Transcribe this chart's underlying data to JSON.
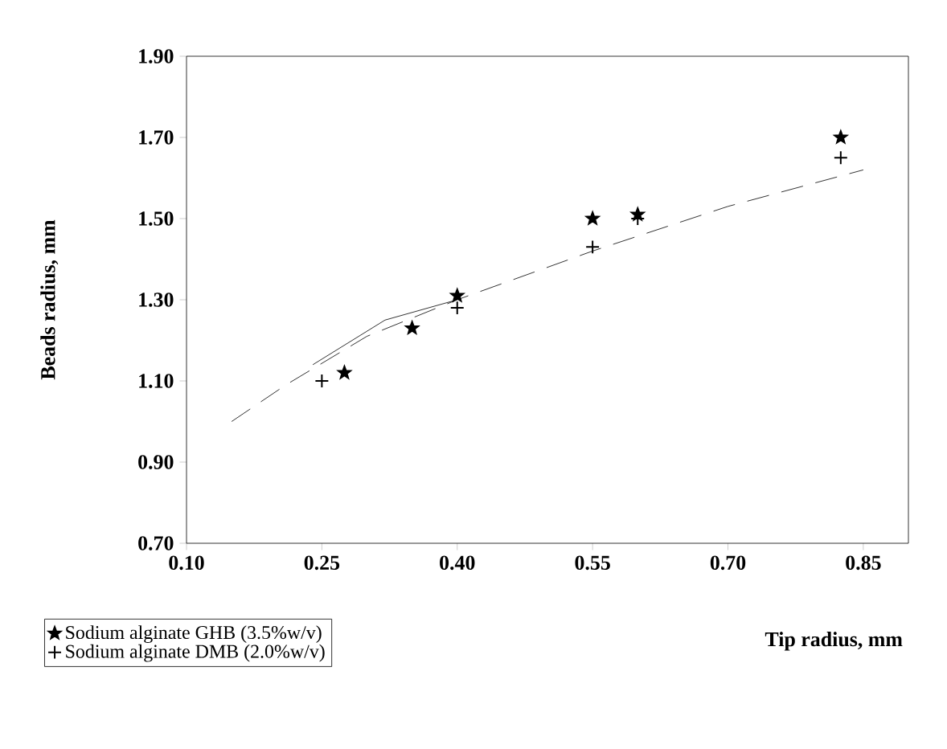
{
  "chart_data": {
    "type": "scatter",
    "xlabel": "Tip radius, mm",
    "ylabel": "Beads radius, mm",
    "xlim": [
      0.1,
      0.9
    ],
    "xticks": [
      {
        "value": 0.1,
        "label": "0.10"
      },
      {
        "value": 0.25,
        "label": "0.25"
      },
      {
        "value": 0.4,
        "label": "0.40"
      },
      {
        "value": 0.55,
        "label": "0.55"
      },
      {
        "value": 0.7,
        "label": "0.70"
      },
      {
        "value": 0.85,
        "label": "0.85"
      }
    ],
    "ylim": [
      0.7,
      1.9
    ],
    "yticks": [
      {
        "value": 0.7,
        "label": "0.70"
      },
      {
        "value": 0.9,
        "label": "0.90"
      },
      {
        "value": 1.1,
        "label": "1.10"
      },
      {
        "value": 1.3,
        "label": "1.30"
      },
      {
        "value": 1.5,
        "label": "1.50"
      },
      {
        "value": 1.7,
        "label": "1.70"
      },
      {
        "value": 1.9,
        "label": "1.90"
      }
    ],
    "grid": false,
    "legend": "bottom left",
    "series": [
      {
        "name": "Sodium alginate GHB (3.5%w/v)",
        "color": "#000000",
        "marker": "star",
        "x": [
          0.275,
          0.35,
          0.4,
          0.55,
          0.6,
          0.825
        ],
        "values": [
          1.12,
          1.23,
          1.31,
          1.5,
          1.51,
          1.7
        ]
      },
      {
        "name": "Sodium alginate DMB (2.0%w/v)",
        "color": "#000000",
        "marker": "cross",
        "x": [
          0.25,
          0.4,
          0.55,
          0.6,
          0.825
        ],
        "values": [
          1.1,
          1.28,
          1.43,
          1.5,
          1.65
        ]
      },
      {
        "type": "line",
        "color": "#000000",
        "line_style": "dashed",
        "marker": "none",
        "x": [
          0.15,
          0.21,
          0.3,
          0.4,
          0.55,
          0.7,
          0.85
        ],
        "values": [
          1.0,
          1.09,
          1.21,
          1.3,
          1.42,
          1.53,
          1.62
        ]
      },
      {
        "type": "line",
        "color": "#000000",
        "line_style": "solid",
        "marker": "none",
        "x": [
          0.24,
          0.32,
          0.4
        ],
        "values": [
          1.14,
          1.25,
          1.3
        ]
      }
    ]
  }
}
